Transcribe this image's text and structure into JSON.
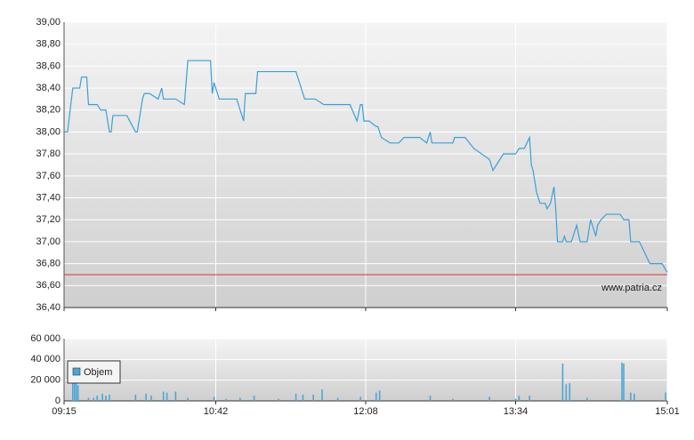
{
  "chart_data": [
    {
      "type": "line",
      "xlim": [
        555,
        901
      ],
      "xticks": [
        555,
        642,
        728,
        814,
        901
      ],
      "ylim": [
        36.4,
        39.0
      ],
      "yticks": [
        {
          "value": 36.4,
          "label": "36,40"
        },
        {
          "value": 36.6,
          "label": "36,60"
        },
        {
          "value": 36.8,
          "label": "36,80"
        },
        {
          "value": 37.0,
          "label": "37,00"
        },
        {
          "value": 37.2,
          "label": "37,20"
        },
        {
          "value": 37.4,
          "label": "37,40"
        },
        {
          "value": 37.6,
          "label": "37,60"
        },
        {
          "value": 37.8,
          "label": "37,80"
        },
        {
          "value": 38.0,
          "label": "38,00"
        },
        {
          "value": 38.2,
          "label": "38,20"
        },
        {
          "value": 38.4,
          "label": "38,40"
        },
        {
          "value": 38.6,
          "label": "38,60"
        },
        {
          "value": 38.8,
          "label": "38,80"
        },
        {
          "value": 39.0,
          "label": "39,00"
        }
      ],
      "grid": true,
      "reference_line": {
        "value": 36.7,
        "color": "#e03030"
      },
      "watermark": "www.patria.cz",
      "series": [
        {
          "color": "#3aa0d8",
          "x": [
            555,
            557,
            560,
            564,
            565,
            568,
            569,
            574,
            576,
            579,
            581,
            582,
            583,
            591,
            596,
            597,
            600,
            601,
            604,
            609,
            611,
            612,
            619,
            624,
            626,
            639,
            640,
            641,
            644,
            654,
            658,
            659,
            665,
            666,
            688,
            693,
            699,
            704,
            719,
            723,
            725,
            726,
            727,
            730,
            734,
            735,
            737,
            742,
            747,
            750,
            759,
            763,
            765,
            766,
            778,
            779,
            785,
            790,
            799,
            801,
            807,
            814,
            816,
            819,
            822,
            823,
            824,
            826,
            828,
            831,
            832,
            834,
            836,
            837,
            838,
            841,
            842,
            843,
            845,
            846,
            848,
            849,
            851,
            855,
            857,
            859,
            860,
            861,
            863,
            866,
            874,
            876,
            879,
            880,
            885,
            891,
            898,
            901
          ],
          "values": [
            38.0,
            38.0,
            38.4,
            38.4,
            38.5,
            38.5,
            38.25,
            38.25,
            38.2,
            38.2,
            38.0,
            38.0,
            38.15,
            38.15,
            38.0,
            38.0,
            38.3,
            38.35,
            38.35,
            38.3,
            38.4,
            38.3,
            38.3,
            38.25,
            38.65,
            38.65,
            38.35,
            38.45,
            38.3,
            38.3,
            38.1,
            38.35,
            38.35,
            38.55,
            38.55,
            38.3,
            38.3,
            38.25,
            38.25,
            38.1,
            38.25,
            38.25,
            38.1,
            38.1,
            38.05,
            38.05,
            37.95,
            37.9,
            37.9,
            37.95,
            37.95,
            37.9,
            38.0,
            37.9,
            37.9,
            37.95,
            37.95,
            37.85,
            37.75,
            37.65,
            37.8,
            37.8,
            37.85,
            37.85,
            37.95,
            37.7,
            37.65,
            37.45,
            37.35,
            37.35,
            37.3,
            37.35,
            37.5,
            37.3,
            37.0,
            37.0,
            37.05,
            37.0,
            37.0,
            37.0,
            37.1,
            37.15,
            37.0,
            37.0,
            37.2,
            37.1,
            37.05,
            37.15,
            37.2,
            37.25,
            37.25,
            37.2,
            37.2,
            37.0,
            37.0,
            36.8,
            36.8,
            36.72
          ]
        }
      ]
    },
    {
      "type": "bar",
      "xlim": [
        555,
        901
      ],
      "xticks": [
        {
          "value": 555,
          "label": "09:15"
        },
        {
          "value": 642,
          "label": "10:42"
        },
        {
          "value": 728,
          "label": "12:08"
        },
        {
          "value": 814,
          "label": "13:34"
        },
        {
          "value": 901,
          "label": "15:01"
        }
      ],
      "ylim": [
        0,
        60000
      ],
      "yticks": [
        0,
        {
          "value": 20000,
          "label": "20 000"
        },
        {
          "value": 40000,
          "label": "40 000"
        },
        {
          "value": 60000,
          "label": "60 000"
        }
      ],
      "grid": true,
      "series": [
        {
          "name": "Objem",
          "color": "#4da6d6",
          "x": [
            560,
            561,
            562,
            563,
            569,
            572,
            574,
            577,
            579,
            581,
            596,
            602,
            605,
            612,
            614,
            619,
            626,
            641,
            648,
            656,
            664,
            678,
            688,
            692,
            698,
            703,
            712,
            725,
            734,
            736,
            765,
            778,
            799,
            814,
            816,
            822,
            841,
            843,
            845,
            855,
            875,
            876,
            880,
            882,
            900
          ],
          "values": [
            22000,
            20000,
            18000,
            15000,
            3000,
            3000,
            5000,
            7000,
            5000,
            6000,
            6000,
            7000,
            5000,
            9000,
            8000,
            9000,
            3000,
            4000,
            2000,
            3000,
            5000,
            2000,
            7000,
            6000,
            6000,
            11000,
            3000,
            4000,
            8000,
            10000,
            5000,
            2000,
            4000,
            2000,
            5000,
            5000,
            36000,
            16000,
            17000,
            3000,
            37000,
            36000,
            8000,
            7000,
            8000
          ]
        }
      ]
    }
  ]
}
